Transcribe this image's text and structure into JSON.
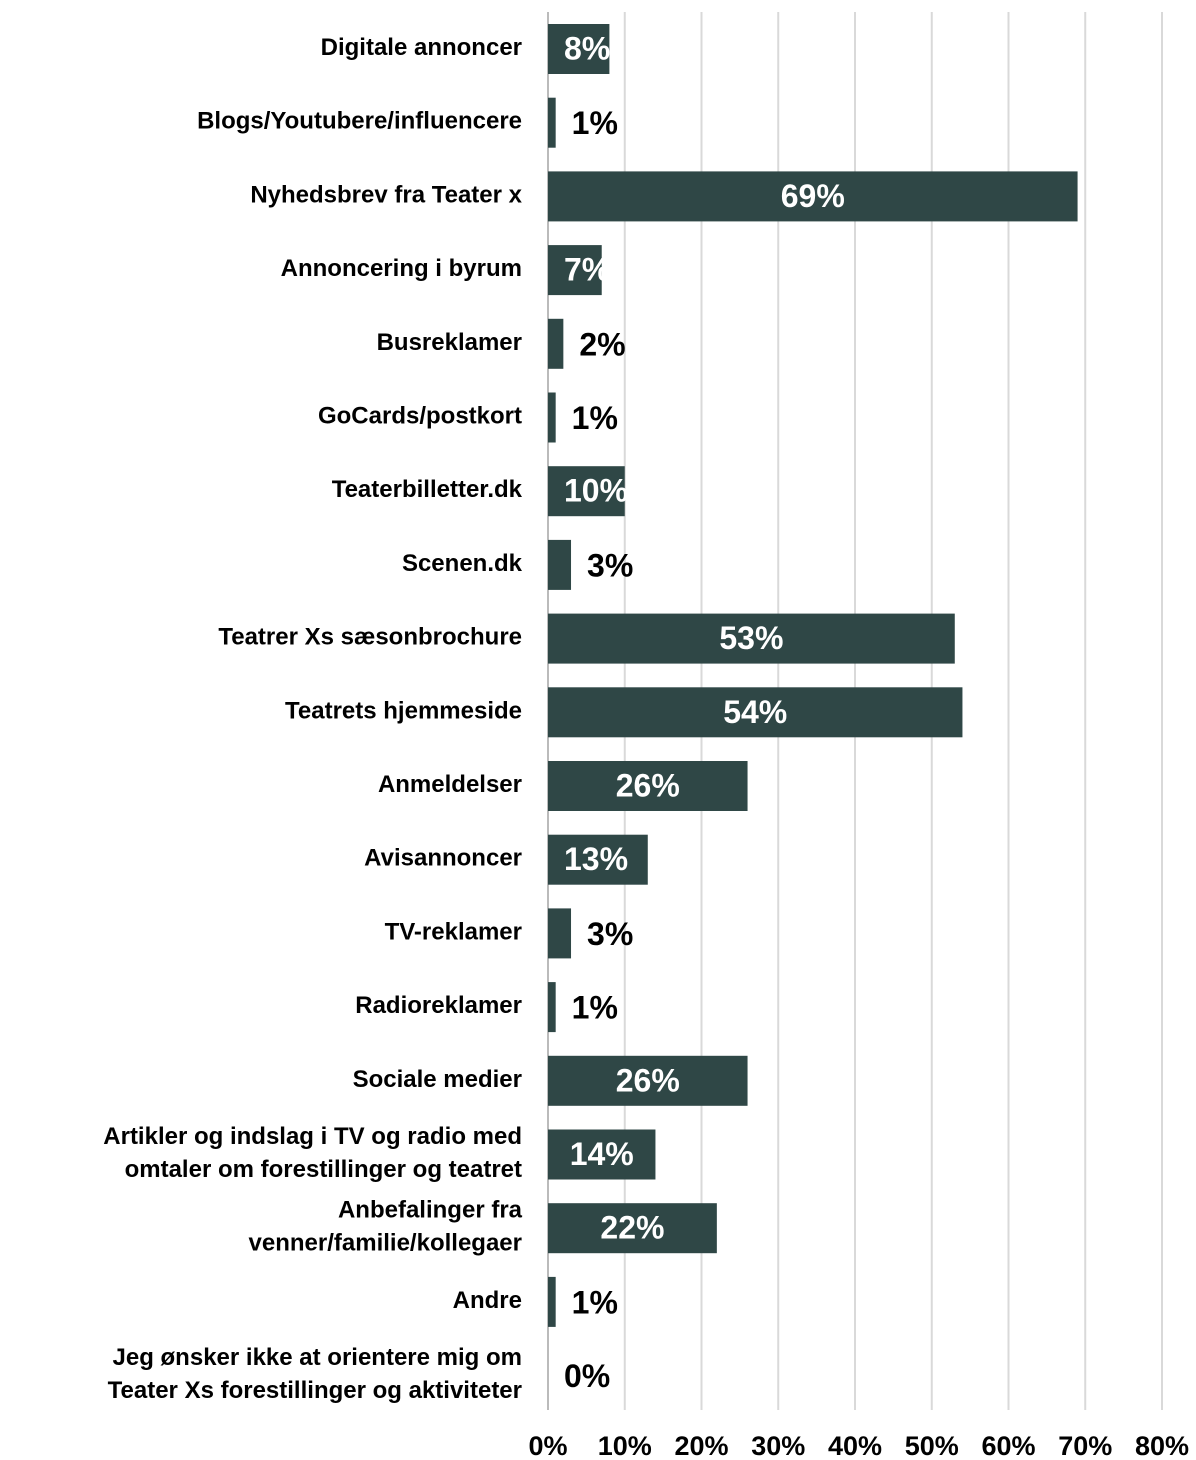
{
  "chart_data": {
    "type": "barh",
    "categories": [
      "Digitale annoncer",
      "Blogs/Youtubere/influencere",
      "Nyhedsbrev fra Teater x",
      "Annoncering i byrum",
      "Busreklamer",
      "GoCards/postkort",
      "Teaterbilletter.dk",
      "Scenen.dk",
      "Teatrer Xs sæsonbrochure",
      "Teatrets hjemmeside",
      "Anmeldelser",
      "Avisannoncer",
      "TV-reklamer",
      "Radioreklamer",
      "Sociale medier",
      "Artikler og indslag i TV og radio med\nomtaler om forestillinger og teatret",
      "Anbefalinger fra\nvenner/familie/kollegaer",
      "Andre",
      "Jeg ønsker ikke at orientere mig om\nTeater Xs forestillinger og aktiviteter"
    ],
    "values": [
      8,
      1,
      69,
      7,
      2,
      1,
      10,
      3,
      53,
      54,
      26,
      13,
      3,
      1,
      26,
      14,
      22,
      1,
      0
    ],
    "value_labels": [
      "8%",
      "1%",
      "69%",
      "7%",
      "2%",
      "1%",
      "10%",
      "3%",
      "53%",
      "54%",
      "26%",
      "13%",
      "3%",
      "1%",
      "26%",
      "14%",
      "22%",
      "1%",
      "0%"
    ],
    "color": "#2f4746",
    "xlim": [
      0,
      80
    ],
    "xticks": [
      {
        "value": 0,
        "label": "0%"
      },
      {
        "value": 10,
        "label": "10%"
      },
      {
        "value": 20,
        "label": "20%"
      },
      {
        "value": 30,
        "label": "30%"
      },
      {
        "value": 40,
        "label": "40%"
      },
      {
        "value": 50,
        "label": "50%"
      },
      {
        "value": 60,
        "label": "60%"
      },
      {
        "value": 70,
        "label": "70%"
      },
      {
        "value": 80,
        "label": "80%"
      }
    ],
    "grid": true
  }
}
